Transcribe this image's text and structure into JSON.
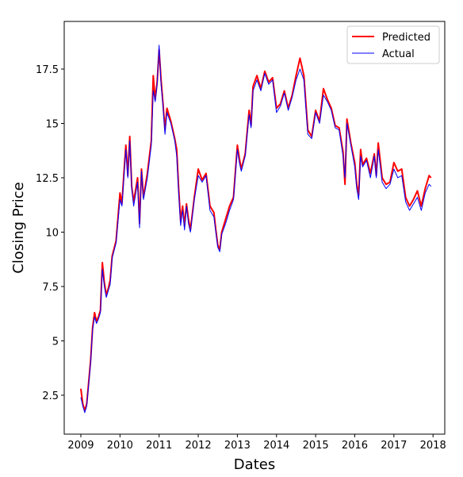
{
  "chart_data": {
    "type": "line",
    "xlabel": "Dates",
    "ylabel": "Closing Price",
    "xlim": [
      2008.575,
      2018.3
    ],
    "ylim": [
      0.71,
      19.69
    ],
    "xticks": [
      2009,
      2010,
      2011,
      2012,
      2013,
      2014,
      2015,
      2016,
      2017,
      2018
    ],
    "yticks": [
      2.5,
      5.0,
      7.5,
      10.0,
      12.5,
      15.0,
      17.5
    ],
    "legend": "upper right",
    "x": [
      2009.0,
      2009.05,
      2009.1,
      2009.15,
      2009.2,
      2009.25,
      2009.3,
      2009.35,
      2009.4,
      2009.45,
      2009.5,
      2009.55,
      2009.6,
      2009.65,
      2009.7,
      2009.75,
      2009.8,
      2009.9,
      2010.0,
      2010.05,
      2010.1,
      2010.15,
      2010.2,
      2010.25,
      2010.3,
      2010.35,
      2010.45,
      2010.5,
      2010.55,
      2010.6,
      2010.7,
      2010.8,
      2010.85,
      2010.9,
      2010.95,
      2011.0,
      2011.05,
      2011.1,
      2011.15,
      2011.2,
      2011.3,
      2011.4,
      2011.45,
      2011.5,
      2011.55,
      2011.6,
      2011.65,
      2011.7,
      2011.75,
      2011.8,
      2011.9,
      2012.0,
      2012.1,
      2012.2,
      2012.3,
      2012.4,
      2012.45,
      2012.5,
      2012.55,
      2012.6,
      2012.7,
      2012.8,
      2012.9,
      2013.0,
      2013.05,
      2013.1,
      2013.2,
      2013.3,
      2013.35,
      2013.4,
      2013.5,
      2013.6,
      2013.7,
      2013.8,
      2013.9,
      2014.0,
      2014.1,
      2014.2,
      2014.3,
      2014.4,
      2014.5,
      2014.6,
      2014.7,
      2014.8,
      2014.9,
      2015.0,
      2015.1,
      2015.2,
      2015.3,
      2015.4,
      2015.5,
      2015.6,
      2015.7,
      2015.75,
      2015.8,
      2015.9,
      2016.0,
      2016.05,
      2016.1,
      2016.15,
      2016.2,
      2016.3,
      2016.4,
      2016.5,
      2016.55,
      2016.6,
      2016.7,
      2016.8,
      2016.9,
      2017.0,
      2017.1,
      2017.2,
      2017.3,
      2017.4,
      2017.5,
      2017.6,
      2017.7,
      2017.8,
      2017.9,
      2017.95
    ],
    "series": [
      {
        "name": "Predicted",
        "color": "#ff0000",
        "width": 2,
        "values": [
          2.8,
          2.1,
          1.8,
          2.1,
          3.1,
          4.1,
          5.6,
          6.3,
          5.9,
          6.1,
          6.4,
          8.6,
          7.7,
          7.1,
          7.4,
          7.8,
          8.9,
          9.6,
          11.8,
          11.3,
          12.7,
          14.0,
          12.6,
          14.4,
          12.1,
          11.4,
          12.5,
          10.4,
          12.9,
          11.6,
          12.7,
          14.2,
          17.2,
          16.1,
          16.9,
          18.4,
          17.0,
          15.9,
          14.7,
          15.7,
          15.1,
          14.3,
          13.8,
          12.0,
          10.5,
          11.2,
          10.3,
          11.3,
          10.6,
          10.1,
          11.6,
          12.9,
          12.4,
          12.7,
          11.2,
          10.9,
          10.1,
          9.4,
          9.2,
          10.0,
          10.6,
          11.2,
          11.6,
          14.0,
          13.4,
          12.9,
          13.6,
          15.6,
          14.9,
          16.7,
          17.2,
          16.6,
          17.4,
          16.9,
          17.1,
          15.7,
          15.9,
          16.5,
          15.7,
          16.3,
          17.2,
          18.0,
          17.2,
          14.7,
          14.4,
          15.6,
          15.1,
          16.6,
          16.1,
          15.7,
          14.9,
          14.8,
          13.7,
          12.2,
          15.2,
          14.1,
          13.2,
          12.2,
          11.7,
          13.8,
          13.1,
          13.4,
          12.7,
          13.6,
          12.6,
          14.1,
          12.5,
          12.2,
          12.3,
          13.2,
          12.8,
          12.9,
          11.6,
          11.2,
          11.5,
          11.9,
          11.2,
          12.0,
          12.6,
          12.5
        ]
      },
      {
        "name": "Actual",
        "color": "#0000ff",
        "width": 1,
        "values": [
          2.4,
          2.0,
          1.7,
          2.0,
          3.0,
          4.0,
          5.5,
          6.1,
          5.8,
          6.0,
          6.3,
          8.3,
          7.5,
          7.0,
          7.3,
          7.6,
          8.8,
          9.5,
          11.5,
          11.2,
          12.5,
          13.8,
          12.5,
          14.2,
          12.0,
          11.2,
          12.3,
          10.2,
          12.8,
          11.5,
          12.5,
          14.0,
          16.5,
          16.0,
          16.8,
          18.6,
          16.8,
          15.8,
          14.5,
          15.5,
          15.0,
          14.2,
          13.5,
          11.8,
          10.3,
          11.0,
          10.1,
          11.2,
          10.4,
          10.0,
          11.5,
          12.6,
          12.3,
          12.6,
          11.0,
          10.7,
          10.0,
          9.3,
          9.1,
          9.9,
          10.4,
          11.0,
          11.5,
          13.8,
          13.2,
          12.8,
          13.5,
          15.4,
          14.8,
          16.5,
          17.0,
          16.5,
          17.3,
          16.8,
          17.0,
          15.5,
          15.8,
          16.4,
          15.6,
          16.2,
          17.0,
          17.5,
          17.0,
          14.5,
          14.3,
          15.5,
          15.0,
          16.3,
          16.0,
          15.6,
          14.8,
          14.7,
          13.5,
          12.5,
          15.0,
          14.0,
          13.0,
          12.0,
          11.5,
          13.5,
          13.0,
          13.3,
          12.5,
          13.5,
          12.5,
          13.8,
          12.3,
          12.0,
          12.2,
          12.9,
          12.5,
          12.6,
          11.4,
          11.0,
          11.3,
          11.6,
          11.0,
          11.8,
          12.2,
          12.1
        ]
      }
    ]
  }
}
